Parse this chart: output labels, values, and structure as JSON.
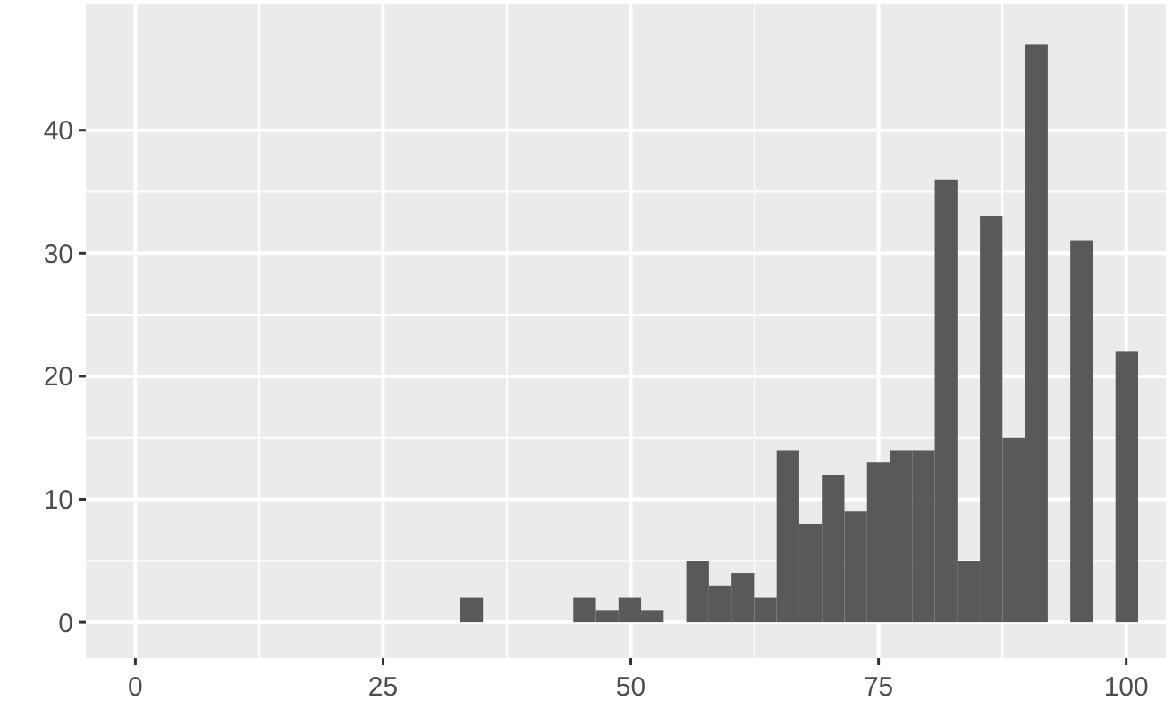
{
  "chart_data": {
    "type": "histogram",
    "bins": [
      32.8,
      35.08,
      37.36,
      39.64,
      41.92,
      44.2,
      46.48,
      48.76,
      51.04,
      53.32,
      55.6,
      57.88,
      60.16,
      62.44,
      64.72,
      67,
      69.28,
      71.56,
      73.84,
      76.12,
      78.4,
      80.68,
      82.96,
      85.24,
      87.52,
      89.8,
      92.08,
      94.36,
      96.64,
      98.92,
      101.2
    ],
    "values": [
      2,
      0,
      0,
      0,
      0,
      2,
      1,
      2,
      1,
      0,
      5,
      3,
      4,
      2,
      14,
      8,
      12,
      9,
      13,
      14,
      14,
      36,
      5,
      33,
      15,
      47,
      0,
      31,
      0,
      22
    ],
    "color": "#595959",
    "xlim": [
      -5,
      104
    ],
    "ylim": [
      -2.9,
      50.3
    ],
    "xticks": [
      0,
      25,
      50,
      75,
      100
    ],
    "yticks": [
      0,
      10,
      20,
      30,
      40
    ],
    "grid": true
  }
}
